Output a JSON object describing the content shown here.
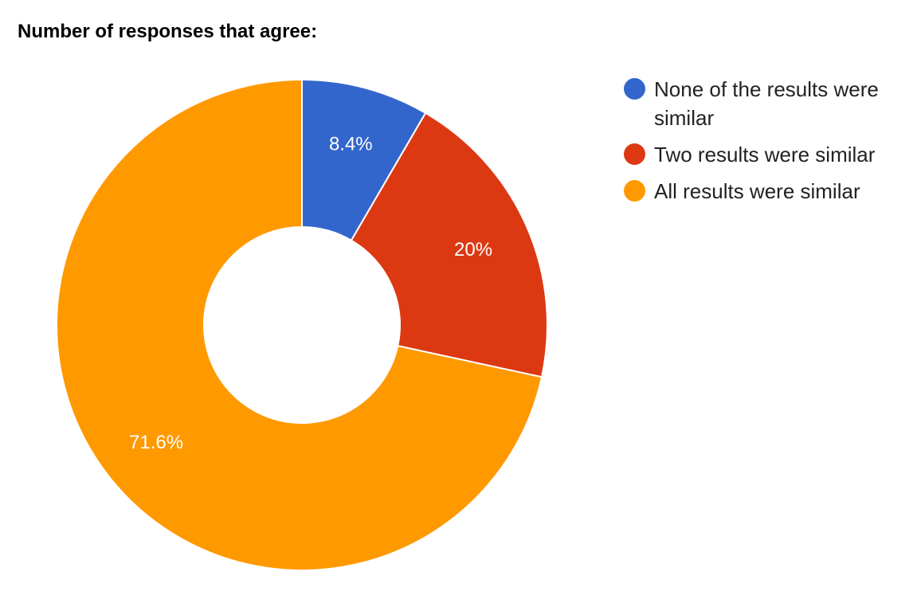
{
  "chart_data": {
    "type": "pie",
    "variant": "donut",
    "title": "Number of responses that agree:",
    "categories": [
      "None of the results were similar",
      "Two results were similar",
      "All results were similar"
    ],
    "values": [
      8.4,
      20,
      71.6
    ],
    "data_labels": [
      "8.4%",
      "20%",
      "71.6%"
    ],
    "colors": [
      "#3366cc",
      "#dc3912",
      "#ff9900"
    ],
    "legend_position": "right",
    "start_angle": "top, clockwise"
  }
}
